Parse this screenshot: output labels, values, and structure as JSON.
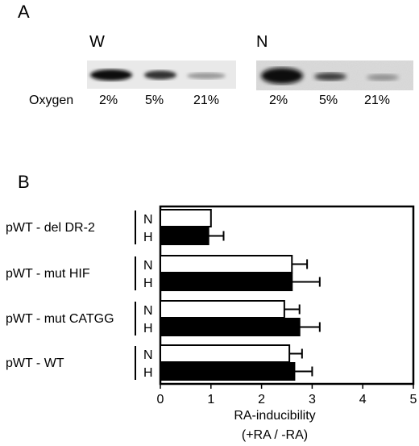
{
  "panel_a": {
    "letter": "A",
    "blot_left_label": "W",
    "blot_right_label": "N",
    "row_label": "Oxygen",
    "lanes_left": [
      "2%",
      "5%",
      "21%"
    ],
    "lanes_right": [
      "2%",
      "5%",
      "21%"
    ]
  },
  "panel_b": {
    "letter": "B"
  },
  "chart_data": {
    "type": "bar",
    "orientation": "horizontal",
    "groups": [
      {
        "label": "pWT - del DR-2",
        "bars": [
          {
            "label": "N",
            "value": 1.0,
            "error": 0.0,
            "fill": "white"
          },
          {
            "label": "H",
            "value": 0.95,
            "error": 0.3,
            "fill": "black"
          }
        ]
      },
      {
        "label": "pWT - mut HIF",
        "bars": [
          {
            "label": "N",
            "value": 2.6,
            "error": 0.3,
            "fill": "white"
          },
          {
            "label": "H",
            "value": 2.6,
            "error": 0.55,
            "fill": "black"
          }
        ]
      },
      {
        "label": "pWT - mut CATGG",
        "bars": [
          {
            "label": "N",
            "value": 2.45,
            "error": 0.3,
            "fill": "white"
          },
          {
            "label": "H",
            "value": 2.75,
            "error": 0.4,
            "fill": "black"
          }
        ]
      },
      {
        "label": "pWT - WT",
        "bars": [
          {
            "label": "N",
            "value": 2.55,
            "error": 0.25,
            "fill": "white"
          },
          {
            "label": "H",
            "value": 2.65,
            "error": 0.35,
            "fill": "black"
          }
        ]
      }
    ],
    "xlim": [
      0,
      5
    ],
    "xticks": [
      "0",
      "1",
      "2",
      "3",
      "4",
      "5"
    ],
    "xlabel_line1": "RA-inducibility",
    "xlabel_line2": "(+RA / -RA)"
  }
}
